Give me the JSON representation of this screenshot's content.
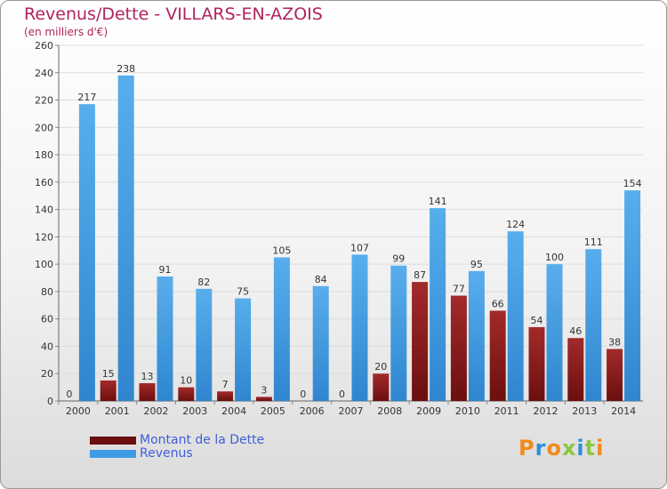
{
  "title": "Revenus/Dette - VILLARS-EN-AZOIS",
  "subtitle": "(en milliers d'€)",
  "colors": {
    "dette": "#6b0f0f",
    "revenus": "#3f9be3",
    "title": "#b0235f",
    "legend_text": "#3f5fd8"
  },
  "legend": {
    "dette_label": "Montant de la Dette",
    "revenus_label": "Revenus"
  },
  "logo": {
    "text": "Proxiti",
    "letter_colors": [
      "#f28a1c",
      "#2e8fd6",
      "#f28a1c",
      "#8cc63f",
      "#2e8fd6",
      "#8cc63f",
      "#f28a1c"
    ]
  },
  "chart_data": {
    "type": "bar",
    "title": "Revenus/Dette - VILLARS-EN-AZOIS",
    "ylabel": "(en milliers d'€)",
    "xlabel": "",
    "categories": [
      "2000",
      "2001",
      "2002",
      "2003",
      "2004",
      "2005",
      "2006",
      "2007",
      "2008",
      "2009",
      "2010",
      "2011",
      "2012",
      "2013",
      "2014"
    ],
    "series": [
      {
        "name": "Montant de la Dette",
        "values": [
          0,
          15,
          13,
          10,
          7,
          3,
          0,
          0,
          20,
          87,
          77,
          66,
          54,
          46,
          38
        ]
      },
      {
        "name": "Revenus",
        "values": [
          217,
          238,
          91,
          82,
          75,
          105,
          84,
          107,
          99,
          141,
          95,
          124,
          100,
          111,
          154
        ]
      }
    ],
    "ylim": [
      0,
      260
    ],
    "yticks": [
      0,
      20,
      40,
      60,
      80,
      100,
      120,
      140,
      160,
      180,
      200,
      220,
      240,
      260
    ],
    "grid": true,
    "legend_position": "bottom-left"
  }
}
